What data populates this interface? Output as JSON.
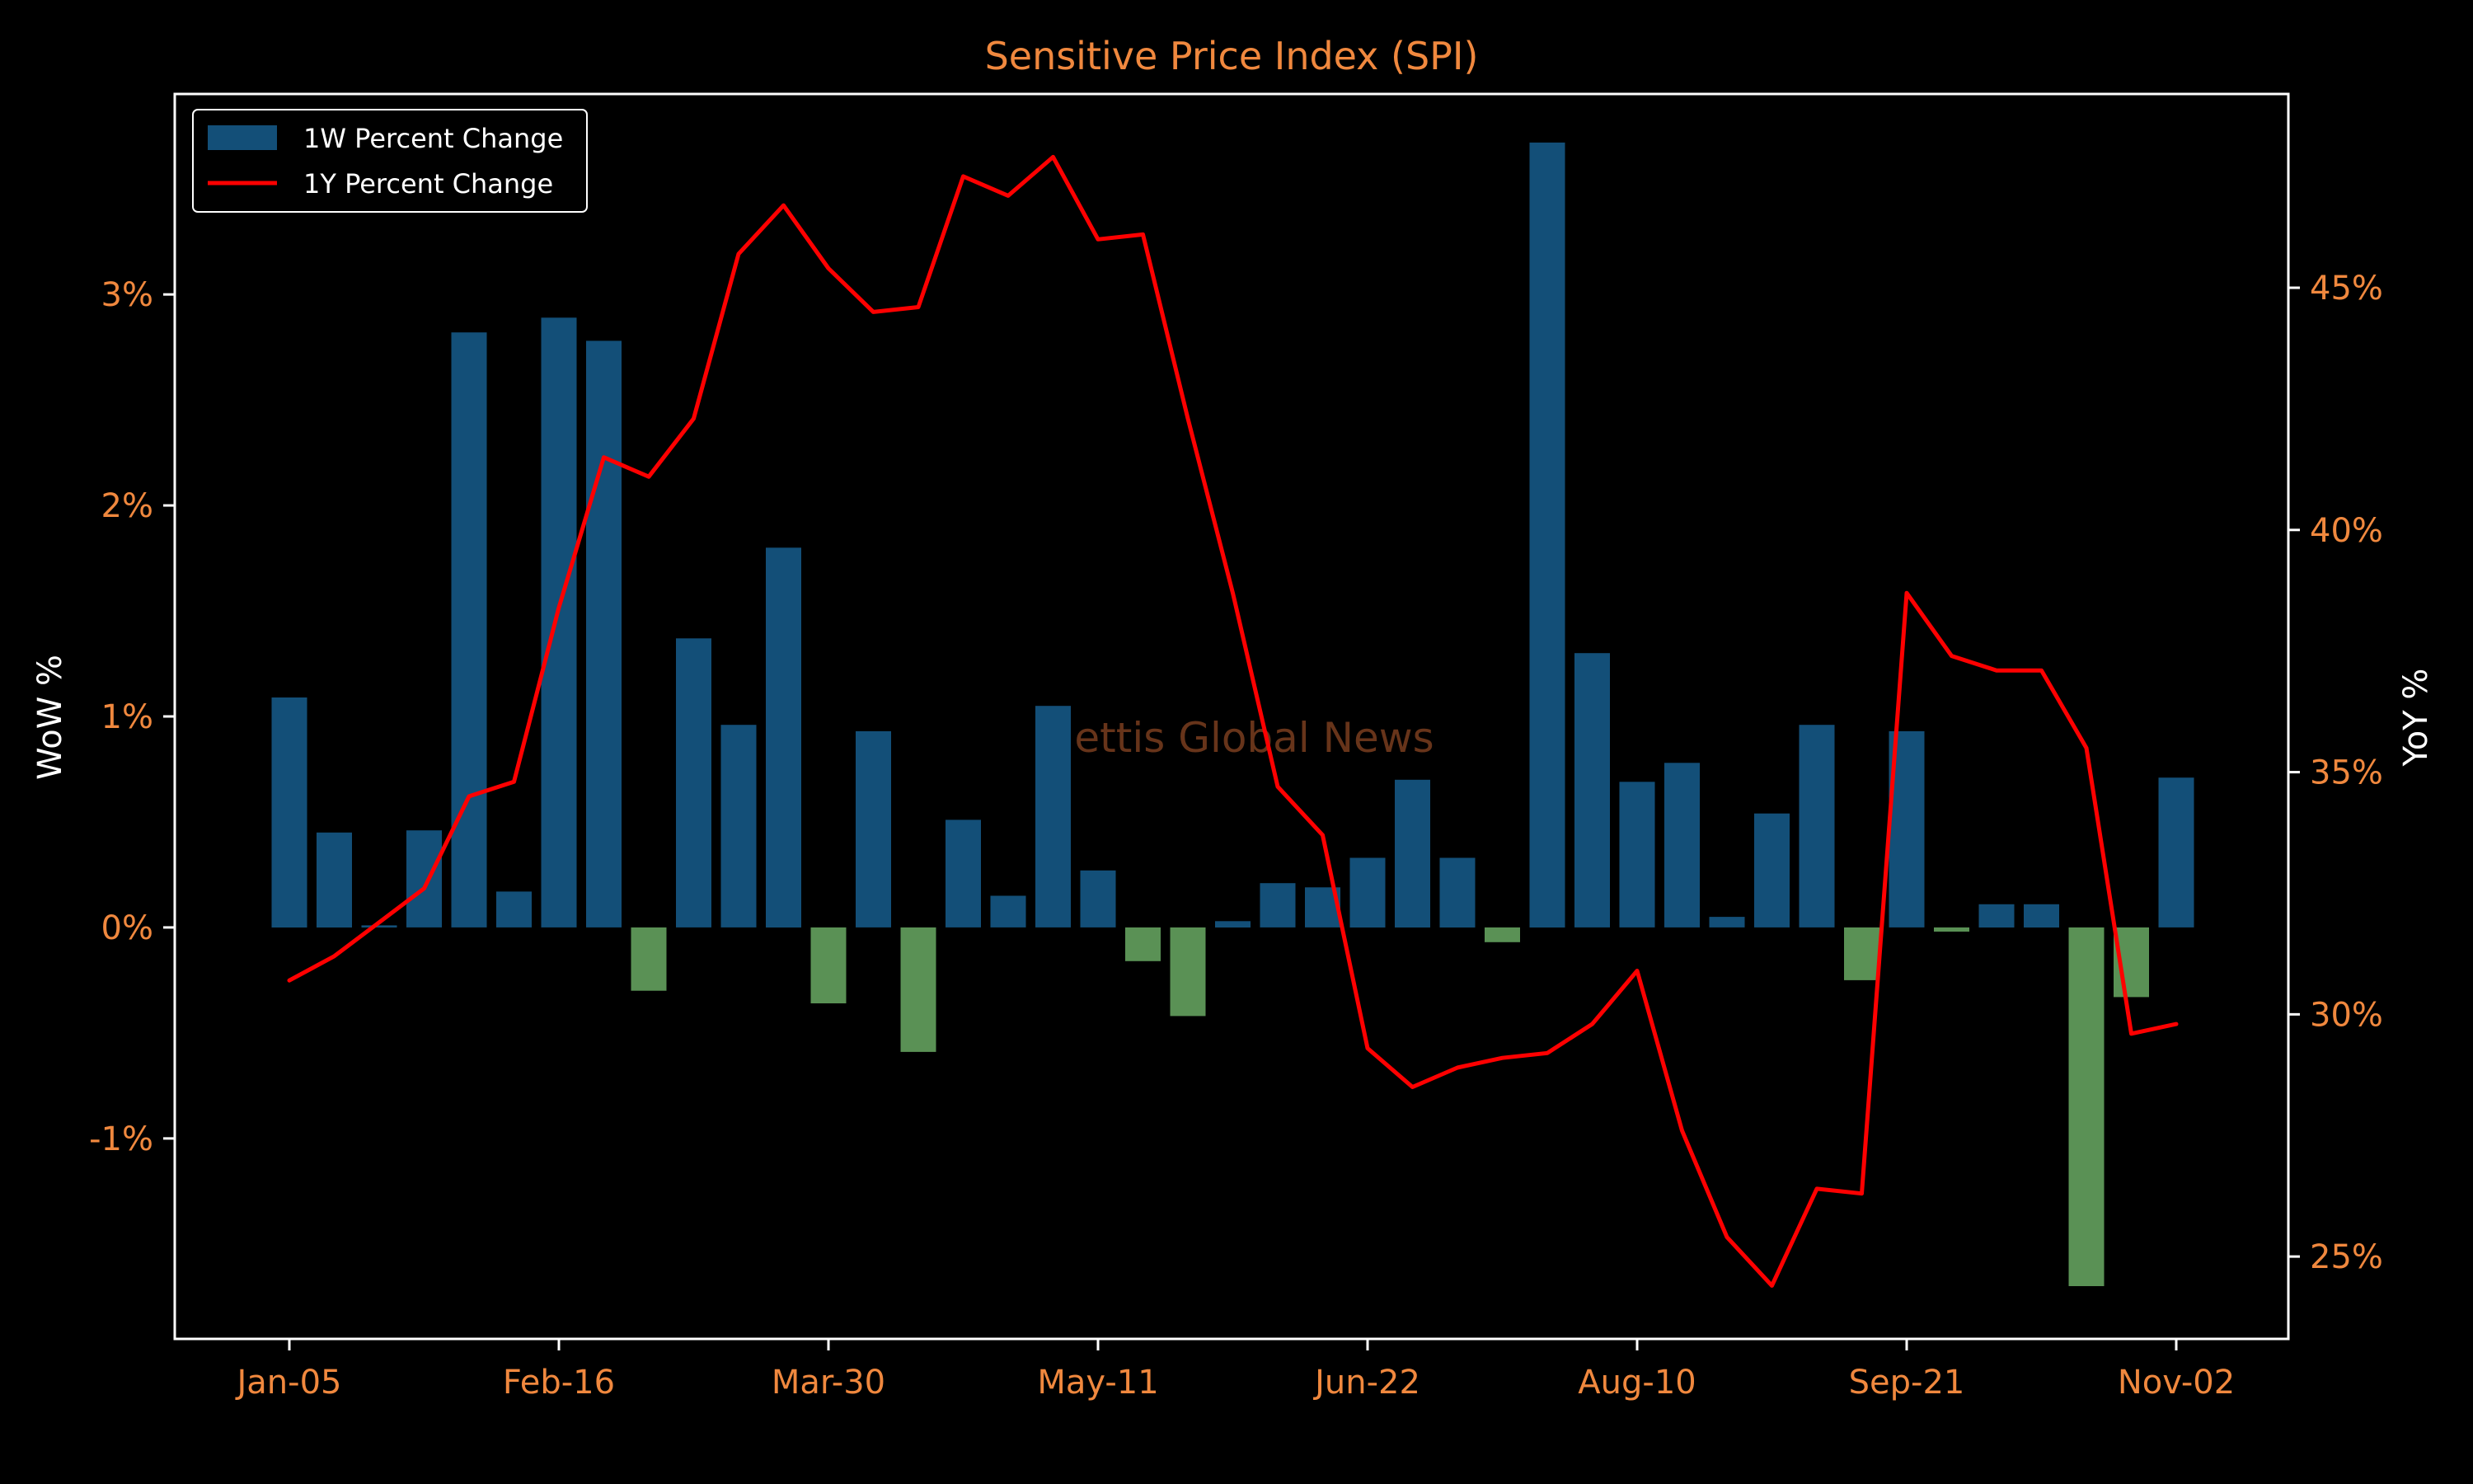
{
  "colors": {
    "background": "#000000",
    "positive_bar": "#134f78",
    "negative_bar": "#5a9155",
    "yoy_line": "#ff0000",
    "title": "#f0883e",
    "ticks": "#f0883e",
    "axis_label": "#ffffff",
    "watermark": "#7a3e1f"
  },
  "watermark": "Mettis Global News",
  "chart_data": {
    "type": "bar",
    "title": "Sensitive Price Index (SPI)",
    "xlabel": "",
    "ylabel": "WoW %",
    "y2label": "YoY %",
    "ylim": [
      -1.95,
      3.95
    ],
    "y2lim": [
      23.3,
      49.0
    ],
    "yticks": [
      -1,
      0,
      1,
      2,
      3
    ],
    "ytick_labels": [
      "-1%",
      "0%",
      "1%",
      "2%",
      "3%"
    ],
    "y2ticks": [
      25,
      30,
      35,
      40,
      45
    ],
    "y2tick_labels": [
      "25%",
      "30%",
      "35%",
      "40%",
      "45%"
    ],
    "xtick_labels": [
      "Jan-05",
      "Feb-16",
      "Mar-30",
      "May-11",
      "Jun-22",
      "Aug-10",
      "Sep-21",
      "Nov-02"
    ],
    "xtick_index": [
      0,
      6,
      12,
      18,
      24,
      30,
      36,
      42
    ],
    "grid": false,
    "legend_position": "top-left",
    "series": [
      {
        "name": "1W Percent Change",
        "type": "bar",
        "axis": "left",
        "values": [
          1.09,
          0.45,
          0.01,
          0.46,
          2.82,
          0.17,
          2.89,
          2.78,
          -0.3,
          1.37,
          0.96,
          1.8,
          -0.36,
          0.93,
          -0.59,
          0.51,
          0.15,
          1.05,
          0.27,
          -0.16,
          -0.42,
          0.03,
          0.21,
          0.19,
          0.33,
          0.7,
          0.33,
          -0.07,
          3.72,
          1.3,
          0.69,
          0.78,
          0.05,
          0.54,
          0.96,
          -0.25,
          0.93,
          -0.02,
          0.11,
          0.11,
          -1.7,
          -0.33,
          0.71
        ]
      },
      {
        "name": "1Y Percent Change",
        "type": "line",
        "axis": "right",
        "values": [
          30.7,
          31.2,
          31.9,
          32.6,
          34.5,
          34.8,
          38.4,
          41.5,
          41.1,
          42.3,
          45.7,
          46.7,
          45.4,
          44.5,
          44.6,
          47.3,
          46.9,
          47.7,
          46.0,
          46.1,
          42.3,
          38.7,
          34.7,
          33.7,
          29.3,
          28.5,
          28.9,
          29.1,
          29.2,
          29.8,
          30.9,
          27.6,
          25.4,
          24.4,
          26.4,
          26.3,
          38.7,
          37.4,
          37.1,
          37.1,
          35.5,
          29.6,
          29.8
        ]
      }
    ]
  }
}
